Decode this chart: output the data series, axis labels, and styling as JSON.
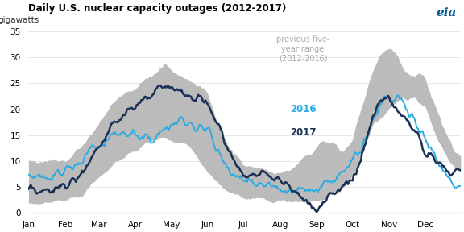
{
  "title": "Daily U.S. nuclear capacity outages (2012-2017)",
  "ylabel": "gigawatts",
  "ylim": [
    0,
    35
  ],
  "yticks": [
    0,
    5,
    10,
    15,
    20,
    25,
    30,
    35
  ],
  "color_2016": "#29abe2",
  "color_2017": "#1a3055",
  "color_band": "#bbbbbb",
  "background_color": "#ffffff",
  "legend_band_color": "#aaaaaa",
  "legend_2016_color": "#29abe2",
  "legend_2017_color": "#1a3055"
}
